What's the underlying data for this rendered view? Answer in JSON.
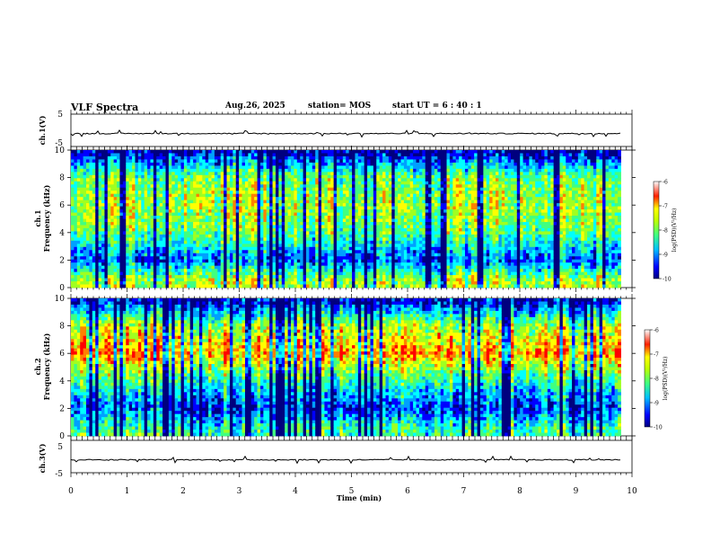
{
  "header": {
    "title": "VLF Spectra",
    "date": "Aug.26, 2025",
    "station": "station= MOS",
    "start": "start  UT =   6  : 40 : 1"
  },
  "chart_data": [
    {
      "type": "line",
      "name": "ch.1 waveform",
      "ylabel": "ch.1(V)",
      "ylim": [
        -5,
        5
      ],
      "yticks": [
        5,
        -5
      ],
      "xlim": [
        0,
        10
      ],
      "series": [
        {
          "name": "ch.1",
          "baseline": -1.0
        }
      ]
    },
    {
      "type": "heatmap",
      "name": "ch.1 spectrogram",
      "ylabel": "ch.1\nFrequency (kHz)",
      "ylim": [
        0,
        10
      ],
      "yticks": [
        0,
        2,
        4,
        6,
        8,
        10
      ],
      "xlim": [
        0,
        9.8
      ],
      "colorbar": {
        "label": "log(PSD)(V²/Hz)",
        "range": [
          -10,
          -6
        ],
        "ticks": [
          "-6",
          "-7",
          "-8",
          "-9",
          "-10"
        ]
      },
      "intensity_profile": [
        {
          "freq": 0.5,
          "level": -7.6
        },
        {
          "freq": 2,
          "level": -9.2
        },
        {
          "freq": 4,
          "level": -8.0
        },
        {
          "freq": 6,
          "level": -7.6
        },
        {
          "freq": 8,
          "level": -7.9
        },
        {
          "freq": 9.8,
          "level": -9.7
        }
      ]
    },
    {
      "type": "heatmap",
      "name": "ch.2 spectrogram",
      "ylabel": "ch.2\nFrequency (kHz)",
      "ylim": [
        0,
        10
      ],
      "yticks": [
        0,
        2,
        4,
        6,
        8,
        10
      ],
      "xlim": [
        0,
        9.8
      ],
      "colorbar": {
        "label": "log(PSD)(V²/Hz)",
        "range": [
          -10,
          -6
        ],
        "ticks": [
          "-6",
          "-7",
          "-8",
          "-9",
          "-10"
        ]
      },
      "intensity_profile": [
        {
          "freq": 0.5,
          "level": -8.2
        },
        {
          "freq": 2,
          "level": -9.3
        },
        {
          "freq": 4,
          "level": -8.3
        },
        {
          "freq": 6,
          "level": -6.8
        },
        {
          "freq": 8,
          "level": -7.6
        },
        {
          "freq": 9.8,
          "level": -9.6
        }
      ]
    },
    {
      "type": "line",
      "name": "ch.3 waveform",
      "ylabel": "ch.3(V)",
      "ylim": [
        -5,
        5
      ],
      "yticks": [
        5,
        -5
      ],
      "xlim": [
        0,
        10
      ],
      "series": [
        {
          "name": "ch.3",
          "baseline": -1.0
        }
      ]
    }
  ],
  "xaxis": {
    "label": "Time  (min)",
    "ticks": [
      "0",
      "1",
      "2",
      "3",
      "4",
      "5",
      "6",
      "7",
      "8",
      "9",
      "10"
    ],
    "range": [
      0,
      10
    ]
  },
  "colors": {
    "colormap": [
      "#00007f",
      "#0000ff",
      "#00a0ff",
      "#00ffff",
      "#40ff80",
      "#a0ff20",
      "#ffff00",
      "#ff8000",
      "#ff0000",
      "#ffffff"
    ]
  }
}
